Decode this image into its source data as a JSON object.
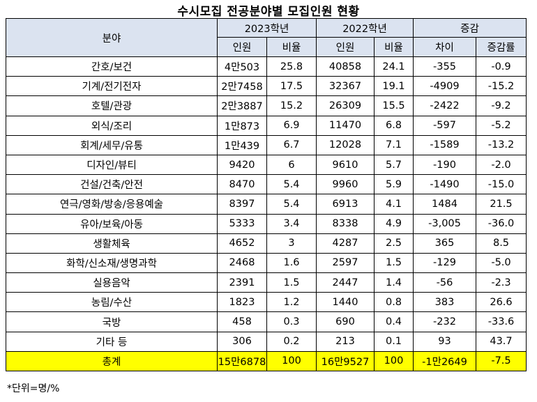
{
  "title": "수시모집 전공분야별 모집인원 현황",
  "header": {
    "field": "분야",
    "year_2023": "2023학년",
    "year_2022": "2022학년",
    "change": "증감",
    "count": "인원",
    "ratio": "비율",
    "diff": "차이",
    "rate": "증감률"
  },
  "rows": [
    {
      "field": "간호/보건",
      "c2023": "4만503",
      "r2023": "25.8",
      "c2022": "40858",
      "r2022": "24.1",
      "diff": "-355",
      "rate": "-0.9"
    },
    {
      "field": "기계/전기전자",
      "c2023": "2만7458",
      "r2023": "17.5",
      "c2022": "32367",
      "r2022": "19.1",
      "diff": "-4909",
      "rate": "-15.2"
    },
    {
      "field": "호텔/관광",
      "c2023": "2만3887",
      "r2023": "15.2",
      "c2022": "26309",
      "r2022": "15.5",
      "diff": "-2422",
      "rate": "-9.2"
    },
    {
      "field": "외식/조리",
      "c2023": "1만873",
      "r2023": "6.9",
      "c2022": "11470",
      "r2022": "6.8",
      "diff": "-597",
      "rate": "-5.2"
    },
    {
      "field": "회계/세무/유통",
      "c2023": "1만439",
      "r2023": "6.7",
      "c2022": "12028",
      "r2022": "7.1",
      "diff": "-1589",
      "rate": "-13.2"
    },
    {
      "field": "디자인/뷰티",
      "c2023": "9420",
      "r2023": "6",
      "c2022": "9610",
      "r2022": "5.7",
      "diff": "-190",
      "rate": "-2.0"
    },
    {
      "field": "건설/건축/안전",
      "c2023": "8470",
      "r2023": "5.4",
      "c2022": "9960",
      "r2022": "5.9",
      "diff": "-1490",
      "rate": "-15.0"
    },
    {
      "field": "연극/영화/방송/응용예술",
      "c2023": "8397",
      "r2023": "5.4",
      "c2022": "6913",
      "r2022": "4.1",
      "diff": "1484",
      "rate": "21.5"
    },
    {
      "field": "유아/보육/아동",
      "c2023": "5333",
      "r2023": "3.4",
      "c2022": "8338",
      "r2022": "4.9",
      "diff": "-3,005",
      "rate": "-36.0"
    },
    {
      "field": "생활체육",
      "c2023": "4652",
      "r2023": "3",
      "c2022": "4287",
      "r2022": "2.5",
      "diff": "365",
      "rate": "8.5"
    },
    {
      "field": "화학/신소재/생명과학",
      "c2023": "2468",
      "r2023": "1.6",
      "c2022": "2597",
      "r2022": "1.5",
      "diff": "-129",
      "rate": "-5.0"
    },
    {
      "field": "실용음악",
      "c2023": "2391",
      "r2023": "1.5",
      "c2022": "2447",
      "r2022": "1.4",
      "diff": "-56",
      "rate": "-2.3"
    },
    {
      "field": "농림/수산",
      "c2023": "1823",
      "r2023": "1.2",
      "c2022": "1440",
      "r2022": "0.8",
      "diff": "383",
      "rate": "26.6"
    },
    {
      "field": "국방",
      "c2023": "458",
      "r2023": "0.3",
      "c2022": "690",
      "r2022": "0.4",
      "diff": "-232",
      "rate": "-33.6"
    },
    {
      "field": "기타 등",
      "c2023": "306",
      "r2023": "0.2",
      "c2022": "213",
      "r2022": "0.1",
      "diff": "93",
      "rate": "43.7"
    }
  ],
  "total": {
    "field": "총계",
    "c2023": "15만6878",
    "r2023": "100",
    "c2022": "16만9527",
    "r2022": "100",
    "diff": "-1만2649",
    "rate": "-7.5"
  },
  "note": "*단위=명/%",
  "colors": {
    "header_bg": "#dbe3f0",
    "total_bg": "#ffff00"
  }
}
